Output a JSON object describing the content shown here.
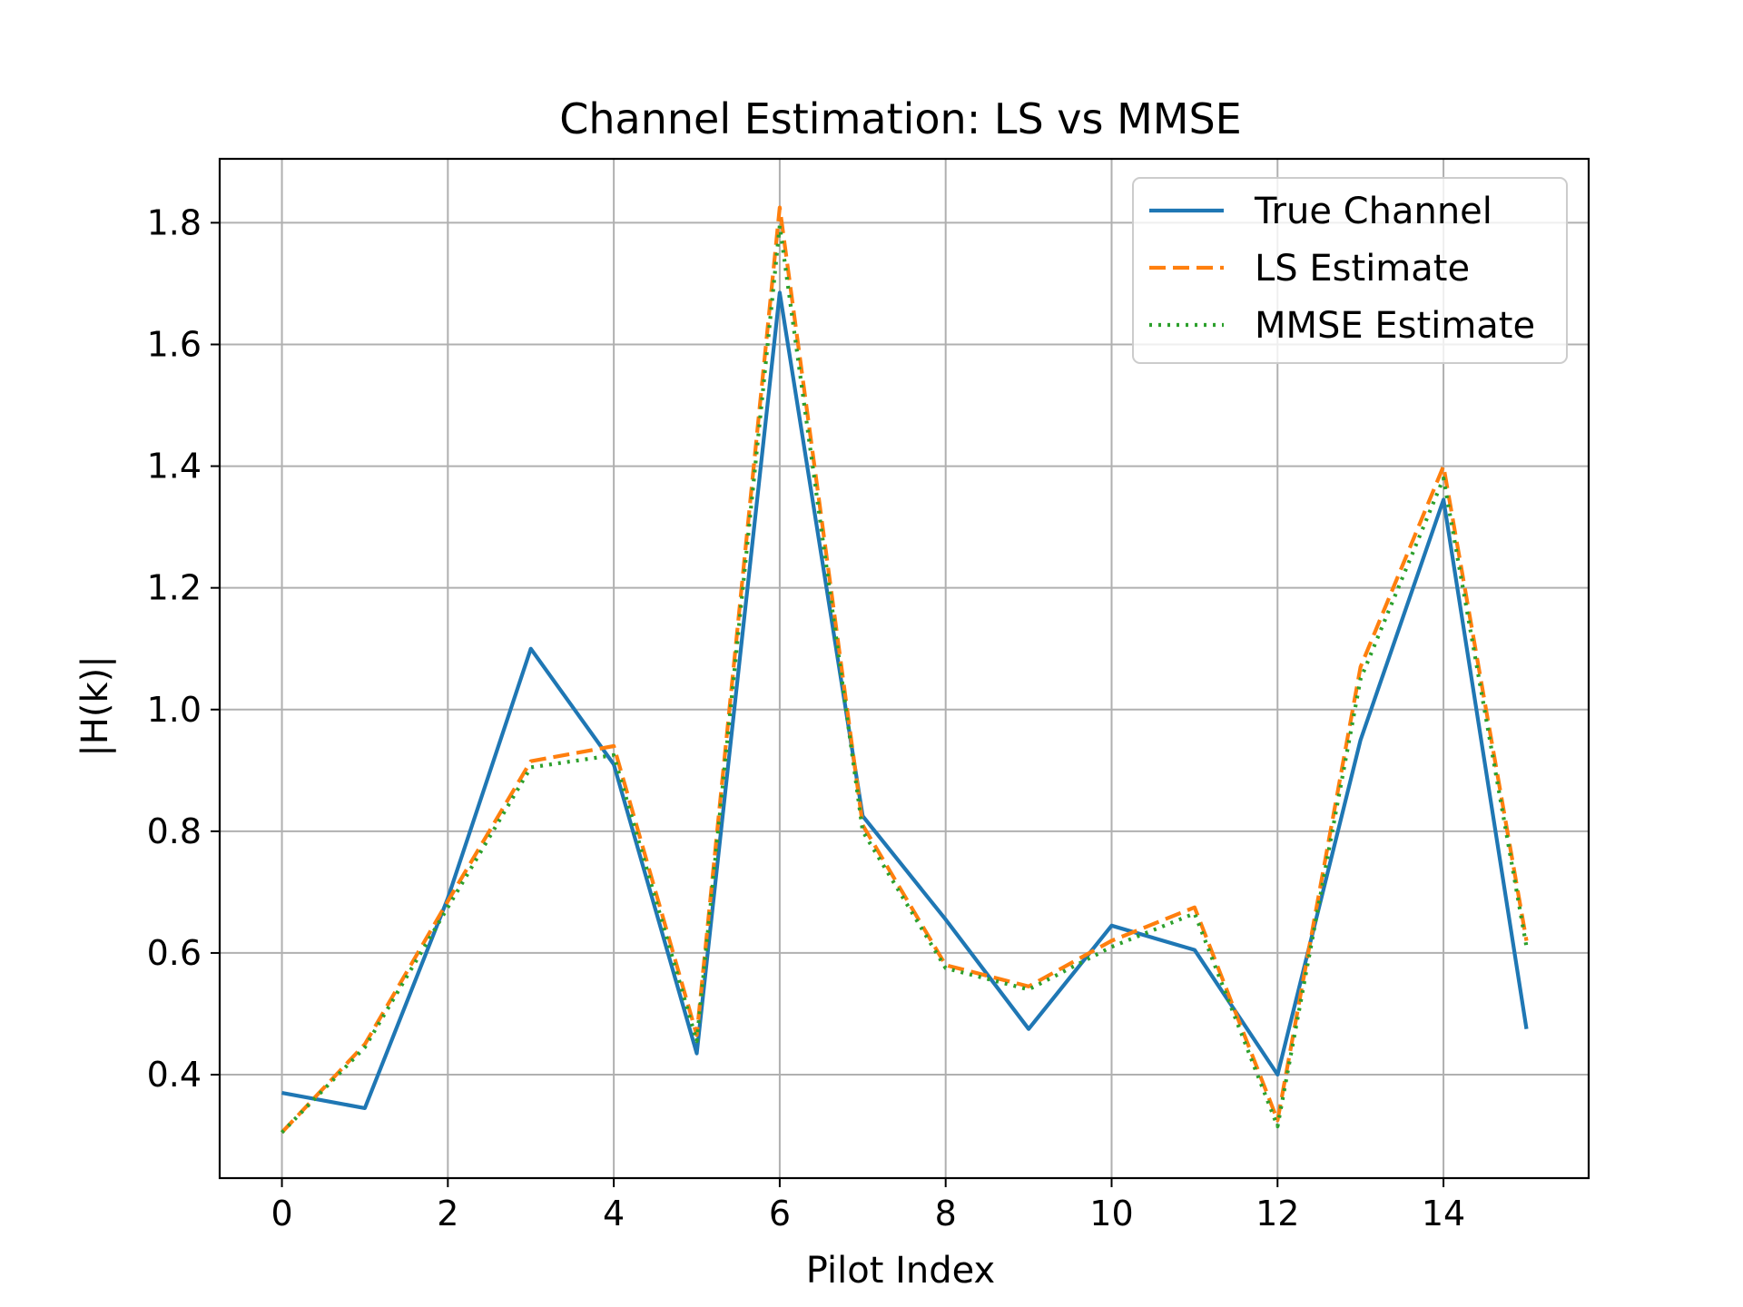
{
  "chart_data": {
    "type": "line",
    "title": "Channel Estimation: LS vs MMSE",
    "xlabel": "Pilot Index",
    "ylabel": "|H(k)|",
    "x": [
      0,
      1,
      2,
      3,
      4,
      5,
      6,
      7,
      8,
      9,
      10,
      11,
      12,
      13,
      14,
      15
    ],
    "xlim": [
      -0.75,
      15.75
    ],
    "ylim": [
      0.23,
      1.905
    ],
    "xticks": [
      0,
      2,
      4,
      6,
      8,
      10,
      12,
      14
    ],
    "xtick_labels": [
      "0",
      "2",
      "4",
      "6",
      "8",
      "10",
      "12",
      "14"
    ],
    "yticks": [
      0.4,
      0.6,
      0.8,
      1.0,
      1.2,
      1.4,
      1.6,
      1.8
    ],
    "ytick_labels": [
      "0.4",
      "0.6",
      "0.8",
      "1.0",
      "1.2",
      "1.4",
      "1.6",
      "1.8"
    ],
    "grid": true,
    "legend_position": "top-right",
    "series": [
      {
        "name": "True Channel",
        "color": "#1f77b4",
        "style": "solid",
        "values": [
          0.37,
          0.345,
          0.69,
          1.1,
          0.91,
          0.435,
          1.685,
          0.825,
          0.655,
          0.475,
          0.645,
          0.605,
          0.4,
          0.95,
          1.345,
          0.475
        ]
      },
      {
        "name": "LS Estimate",
        "color": "#ff7f0e",
        "style": "dashed",
        "values": [
          0.305,
          0.45,
          0.685,
          0.915,
          0.94,
          0.465,
          1.825,
          0.81,
          0.58,
          0.545,
          0.62,
          0.675,
          0.325,
          1.07,
          1.4,
          0.62
        ]
      },
      {
        "name": "MMSE Estimate",
        "color": "#2ca02c",
        "style": "dotted",
        "values": [
          0.305,
          0.445,
          0.675,
          0.905,
          0.925,
          0.455,
          1.795,
          0.8,
          0.575,
          0.54,
          0.61,
          0.665,
          0.315,
          1.05,
          1.38,
          0.61
        ]
      }
    ]
  }
}
